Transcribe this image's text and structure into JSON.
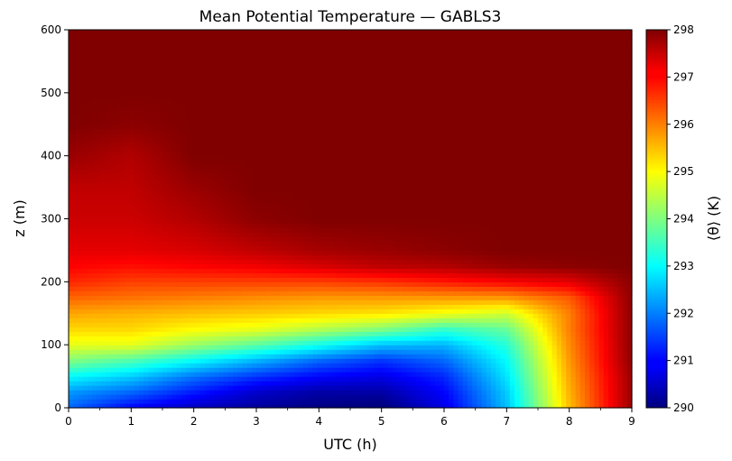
{
  "chart_data": {
    "type": "heatmap",
    "title": "Mean Potential Temperature — GABLS3",
    "xlabel": "UTC (h)",
    "ylabel": "z (m)",
    "colorbar_label": "⟨θ⟩ (K)",
    "colormap": "jet",
    "xlim": [
      0,
      9
    ],
    "ylim": [
      0,
      600
    ],
    "clim": [
      290,
      298
    ],
    "x_ticks": [
      "0",
      "1",
      "2",
      "3",
      "4",
      "5",
      "6",
      "7",
      "8",
      "9"
    ],
    "y_ticks": [
      "0",
      "100",
      "200",
      "300",
      "400",
      "500",
      "600"
    ],
    "colorbar_ticks": [
      "290",
      "291",
      "292",
      "293",
      "294",
      "295",
      "296",
      "297",
      "298"
    ],
    "grid": false,
    "x_hours": [
      0,
      1,
      2,
      3,
      4,
      5,
      6,
      7,
      8,
      9
    ],
    "z_levels_m": [
      0,
      25,
      50,
      75,
      100,
      125,
      150,
      175,
      200,
      225,
      250,
      300,
      350,
      400,
      450,
      500,
      550,
      600
    ],
    "theta_K": [
      [
        291.8,
        291.0,
        290.5,
        290.2,
        290.0,
        289.9,
        290.8,
        292.5,
        295.5,
        297.8
      ],
      [
        292.2,
        291.8,
        291.2,
        290.6,
        290.3,
        290.3,
        291.0,
        292.6,
        295.6,
        297.8
      ],
      [
        293.0,
        292.6,
        291.9,
        291.4,
        291.0,
        290.8,
        291.3,
        292.8,
        295.7,
        297.8
      ],
      [
        294.0,
        293.6,
        293.0,
        292.4,
        291.8,
        291.4,
        291.8,
        293.0,
        295.8,
        297.9
      ],
      [
        294.8,
        294.8,
        294.2,
        293.7,
        293.1,
        292.5,
        292.4,
        293.3,
        295.9,
        297.9
      ],
      [
        295.3,
        295.3,
        295.0,
        294.8,
        294.4,
        294.0,
        293.4,
        293.8,
        296.0,
        297.9
      ],
      [
        295.7,
        295.6,
        295.5,
        295.4,
        295.3,
        295.2,
        294.9,
        294.6,
        296.0,
        297.9
      ],
      [
        296.2,
        296.1,
        296.0,
        295.9,
        295.8,
        295.8,
        295.8,
        295.8,
        296.3,
        297.9
      ],
      [
        296.7,
        296.5,
        296.5,
        296.5,
        296.5,
        296.6,
        296.8,
        297.0,
        297.2,
        297.9
      ],
      [
        297.0,
        296.9,
        297.0,
        297.1,
        297.3,
        297.5,
        297.6,
        297.8,
        297.9,
        298.0
      ],
      [
        297.2,
        297.2,
        297.3,
        297.5,
        297.7,
        297.8,
        297.9,
        298.0,
        298.0,
        298.0
      ],
      [
        297.4,
        297.4,
        297.6,
        297.9,
        298.0,
        298.0,
        298.0,
        298.0,
        298.0,
        298.0
      ],
      [
        297.5,
        297.5,
        297.8,
        298.0,
        298.0,
        298.0,
        298.0,
        298.0,
        298.0,
        298.0
      ],
      [
        297.8,
        297.6,
        298.0,
        298.0,
        298.0,
        298.0,
        298.0,
        298.0,
        298.0,
        298.0
      ],
      [
        298.0,
        297.9,
        298.0,
        298.0,
        298.0,
        298.0,
        298.0,
        298.0,
        298.0,
        298.0
      ],
      [
        298.0,
        298.0,
        298.0,
        298.0,
        298.0,
        298.0,
        298.0,
        298.0,
        298.0,
        298.0
      ],
      [
        298.0,
        298.0,
        298.0,
        298.0,
        298.0,
        298.0,
        298.0,
        298.0,
        298.0,
        298.0
      ],
      [
        298.0,
        298.0,
        298.0,
        298.0,
        298.0,
        298.0,
        298.0,
        298.0,
        298.0,
        298.0
      ]
    ]
  }
}
